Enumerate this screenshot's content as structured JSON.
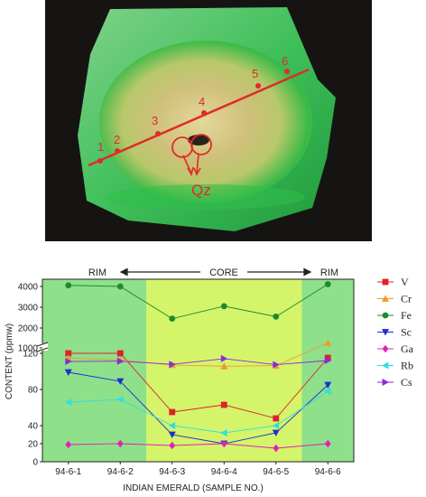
{
  "photo": {
    "point_labels": [
      "1",
      "2",
      "3",
      "4",
      "5",
      "6"
    ],
    "qz_label": "Qz"
  },
  "regions": {
    "rim_left": "RIM",
    "core": "CORE",
    "rim_right": "RIM"
  },
  "colors": {
    "rim_bg": "#8fe08a",
    "core_bg": "#d4f46a"
  },
  "chart_data": {
    "type": "line",
    "xlabel": "INDIAN EMERALD (SAMPLE NO.)",
    "ylabel": "CONTENT (ppmw)",
    "categories": [
      "94-6-1",
      "94-6-2",
      "94-6-3",
      "94-6-4",
      "94-6-5",
      "94-6-6"
    ],
    "y_break": {
      "lower_range": [
        0,
        120
      ],
      "upper_range": [
        400,
        4000
      ]
    },
    "yticks_lower": [
      "0",
      "20",
      "40",
      "80",
      "120"
    ],
    "yticks_upper": [
      "1000",
      "2000",
      "3000",
      "4000"
    ],
    "legend_position": "right",
    "series": [
      {
        "name": "V",
        "color": "#e0202a",
        "marker": "square",
        "values": [
          120,
          120,
          55,
          63,
          48,
          115
        ]
      },
      {
        "name": "Cr",
        "color": "#f09a2a",
        "marker": "triangle-up",
        "values": [
          680,
          620,
          460,
          420,
          440,
          1250
        ]
      },
      {
        "name": "Fe",
        "color": "#1e8a2e",
        "marker": "circle",
        "values": [
          4050,
          4000,
          2450,
          3050,
          2550,
          4100
        ]
      },
      {
        "name": "Sc",
        "color": "#1a2fd0",
        "marker": "triangle-down",
        "values": [
          99,
          89,
          30,
          20,
          32,
          85
        ]
      },
      {
        "name": "Ga",
        "color": "#e020b8",
        "marker": "diamond",
        "values": [
          19,
          20,
          18,
          20,
          15,
          20
        ]
      },
      {
        "name": "Rb",
        "color": "#30e0e0",
        "marker": "triangle-left",
        "values": [
          66,
          69,
          40,
          32,
          40,
          78
        ]
      },
      {
        "name": "Cs",
        "color": "#8a2ae0",
        "marker": "triangle-right",
        "values": [
          570,
          580,
          480,
          660,
          470,
          600
        ]
      }
    ]
  }
}
